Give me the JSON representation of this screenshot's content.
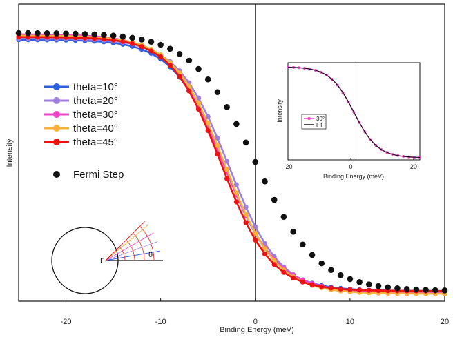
{
  "chart_data": {
    "type": "line",
    "title": "",
    "xlabel": "Binding Energy (meV)",
    "ylabel": "Intensity",
    "xlim": [
      -25,
      20
    ],
    "ylim": [
      0,
      1
    ],
    "xticks": [
      -20,
      -10,
      0,
      10,
      20
    ],
    "xtick_labels": [
      "-20",
      "-10",
      "0",
      "10",
      "20"
    ],
    "grid": false,
    "legend_position": "left",
    "series": [
      {
        "name": "theta=10°",
        "color": "#2f5fe0",
        "mu": -3.3,
        "kT": 2.7,
        "lo": 0.02,
        "hi": 0.955,
        "style": "line-marker"
      },
      {
        "name": "theta=20°",
        "color": "#a07ee0",
        "mu": -2.8,
        "kT": 2.7,
        "lo": 0.01,
        "hi": 0.96,
        "style": "line-marker"
      },
      {
        "name": "theta=30°",
        "color": "#ee44c8",
        "mu": -3.4,
        "kT": 2.8,
        "lo": 0.015,
        "hi": 0.975,
        "style": "line-marker"
      },
      {
        "name": "theta=40°",
        "color": "#f8b238",
        "mu": -3.2,
        "kT": 2.7,
        "lo": 0.01,
        "hi": 0.97,
        "style": "line-marker"
      },
      {
        "name": "theta=45°",
        "color": "#ee1111",
        "mu": -3.6,
        "kT": 2.6,
        "lo": 0.02,
        "hi": 0.965,
        "style": "line-marker"
      },
      {
        "name": "Fermi Step",
        "color": "#111111",
        "mu": 0.0,
        "kT": 3.3,
        "lo": 0.02,
        "hi": 0.98,
        "style": "marker"
      }
    ],
    "inset": {
      "xlabel": "Binding Energy (meV)",
      "ylabel": "Intensity",
      "xlim": [
        -20,
        22
      ],
      "xticks": [
        -20,
        0,
        20
      ],
      "xtick_labels": [
        "-20",
        "0",
        "20"
      ],
      "vline_x": 1,
      "series": [
        {
          "name": "30°",
          "color": "#ee44c8",
          "style": "line-marker"
        },
        {
          "name": "Fit",
          "color": "#111111",
          "style": "line"
        }
      ]
    },
    "diagram": {
      "center_label": "Γ",
      "angle_label": "θ",
      "angles_deg": [
        10,
        20,
        30,
        40,
        45
      ],
      "ray_colors": [
        "#2f5fe0",
        "#a07ee0",
        "#ee44c8",
        "#f8b238",
        "#ee1111"
      ]
    }
  }
}
